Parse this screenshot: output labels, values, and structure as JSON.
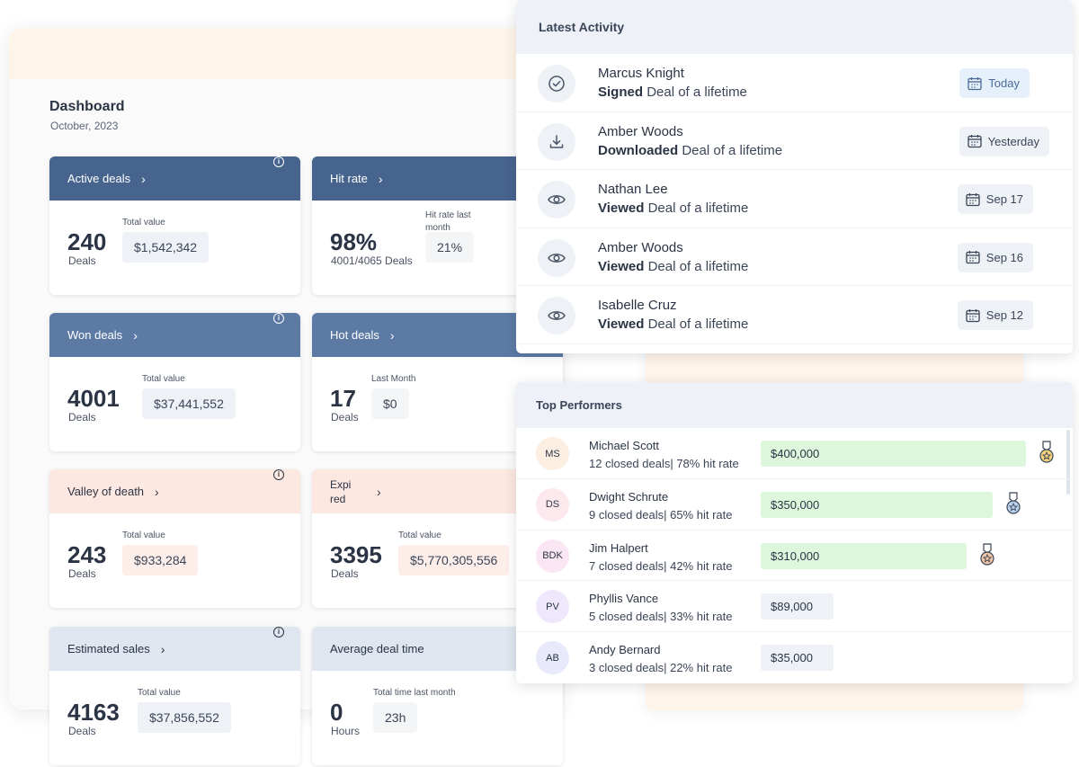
{
  "dashboard": {
    "title": "Dashboard",
    "subtitle": "October, 2023",
    "cards": [
      {
        "id": "active",
        "label": "Active deals",
        "big": "240",
        "unit": "Deals",
        "value_label": "Total value",
        "value": "$1,542,342"
      },
      {
        "id": "hit",
        "label": "Hit rate",
        "big": "98%",
        "unit": "4001/4065 Deals",
        "value_label": "Hit rate last month",
        "value": "21%"
      },
      {
        "id": "won",
        "label": "Won deals",
        "big": "4001",
        "unit": "Deals",
        "value_label": "Total value",
        "value": "$37,441,552"
      },
      {
        "id": "hot",
        "label": "Hot deals",
        "big": "17",
        "unit": "Deals",
        "value_label": "Last Month",
        "value": "$0"
      },
      {
        "id": "valley",
        "label": "Valley of death",
        "big": "243",
        "unit": "Deals",
        "value_label": "Total value",
        "value": "$933,284"
      },
      {
        "id": "expired",
        "label": "Expi red",
        "big": "3395",
        "unit": "Deals",
        "value_label": "Total value",
        "value": "$5,770,305,556"
      },
      {
        "id": "estimated",
        "label": "Estimated sales",
        "big": "4163",
        "unit": "Deals",
        "value_label": "Total value",
        "value": "$37,856,552"
      },
      {
        "id": "avgtime",
        "label": "Average deal time",
        "big": "0",
        "unit": "Hours",
        "value_label": "Total time last month",
        "value": "23h"
      }
    ],
    "colors": {
      "header_dark": "#47648f",
      "header_mid": "#5d7aa4",
      "header_pink": "#fde7e1",
      "header_light": "#dfe6ef"
    }
  },
  "activity": {
    "title": "Latest Activity",
    "items": [
      {
        "name": "Marcus Knight",
        "action": "Signed",
        "object": "Deal of a lifetime",
        "date": "Today",
        "icon": "check-circle-icon"
      },
      {
        "name": "Amber Woods",
        "action": "Downloaded",
        "object": "Deal of a lifetime",
        "date": "Yesterday",
        "icon": "download-icon"
      },
      {
        "name": "Nathan Lee",
        "action": "Viewed",
        "object": "Deal of a lifetime",
        "date": "Sep 17",
        "icon": "eye-icon"
      },
      {
        "name": "Amber Woods",
        "action": "Viewed",
        "object": "Deal of a lifetime",
        "date": "Sep 16",
        "icon": "eye-icon"
      },
      {
        "name": "Isabelle Cruz",
        "action": "Viewed",
        "object": "Deal of a lifetime",
        "date": "Sep 12",
        "icon": "eye-icon"
      }
    ]
  },
  "performers": {
    "title": "Top Performers",
    "items": [
      {
        "initials": "MS",
        "name": "Michael Scott",
        "stats": "12 closed deals| 78% hit rate",
        "amount": "$400,000",
        "share": 1.0,
        "medal": "gold",
        "avatar_color": "#fdeee2"
      },
      {
        "initials": "DS",
        "name": "Dwight Schrute",
        "stats": "9 closed deals| 65% hit rate",
        "amount": "$350,000",
        "share": 0.875,
        "medal": "silver",
        "avatar_color": "#fde8ee"
      },
      {
        "initials": "BDK",
        "name": "Jim Halpert",
        "stats": "7 closed deals| 42% hit rate",
        "amount": "$310,000",
        "share": 0.775,
        "medal": "bronze",
        "avatar_color": "#fbe6f3"
      },
      {
        "initials": "PV",
        "name": "Phyllis Vance",
        "stats": "5 closed deals| 33% hit rate",
        "amount": "$89,000",
        "share": 0.2225,
        "medal": "",
        "avatar_color": "#efe7fb"
      },
      {
        "initials": "AB",
        "name": "Andy Bernard",
        "stats": "3 closed deals| 22% hit rate",
        "amount": "$35,000",
        "share": 0.0875,
        "medal": "",
        "avatar_color": "#e8e9fb"
      }
    ]
  }
}
